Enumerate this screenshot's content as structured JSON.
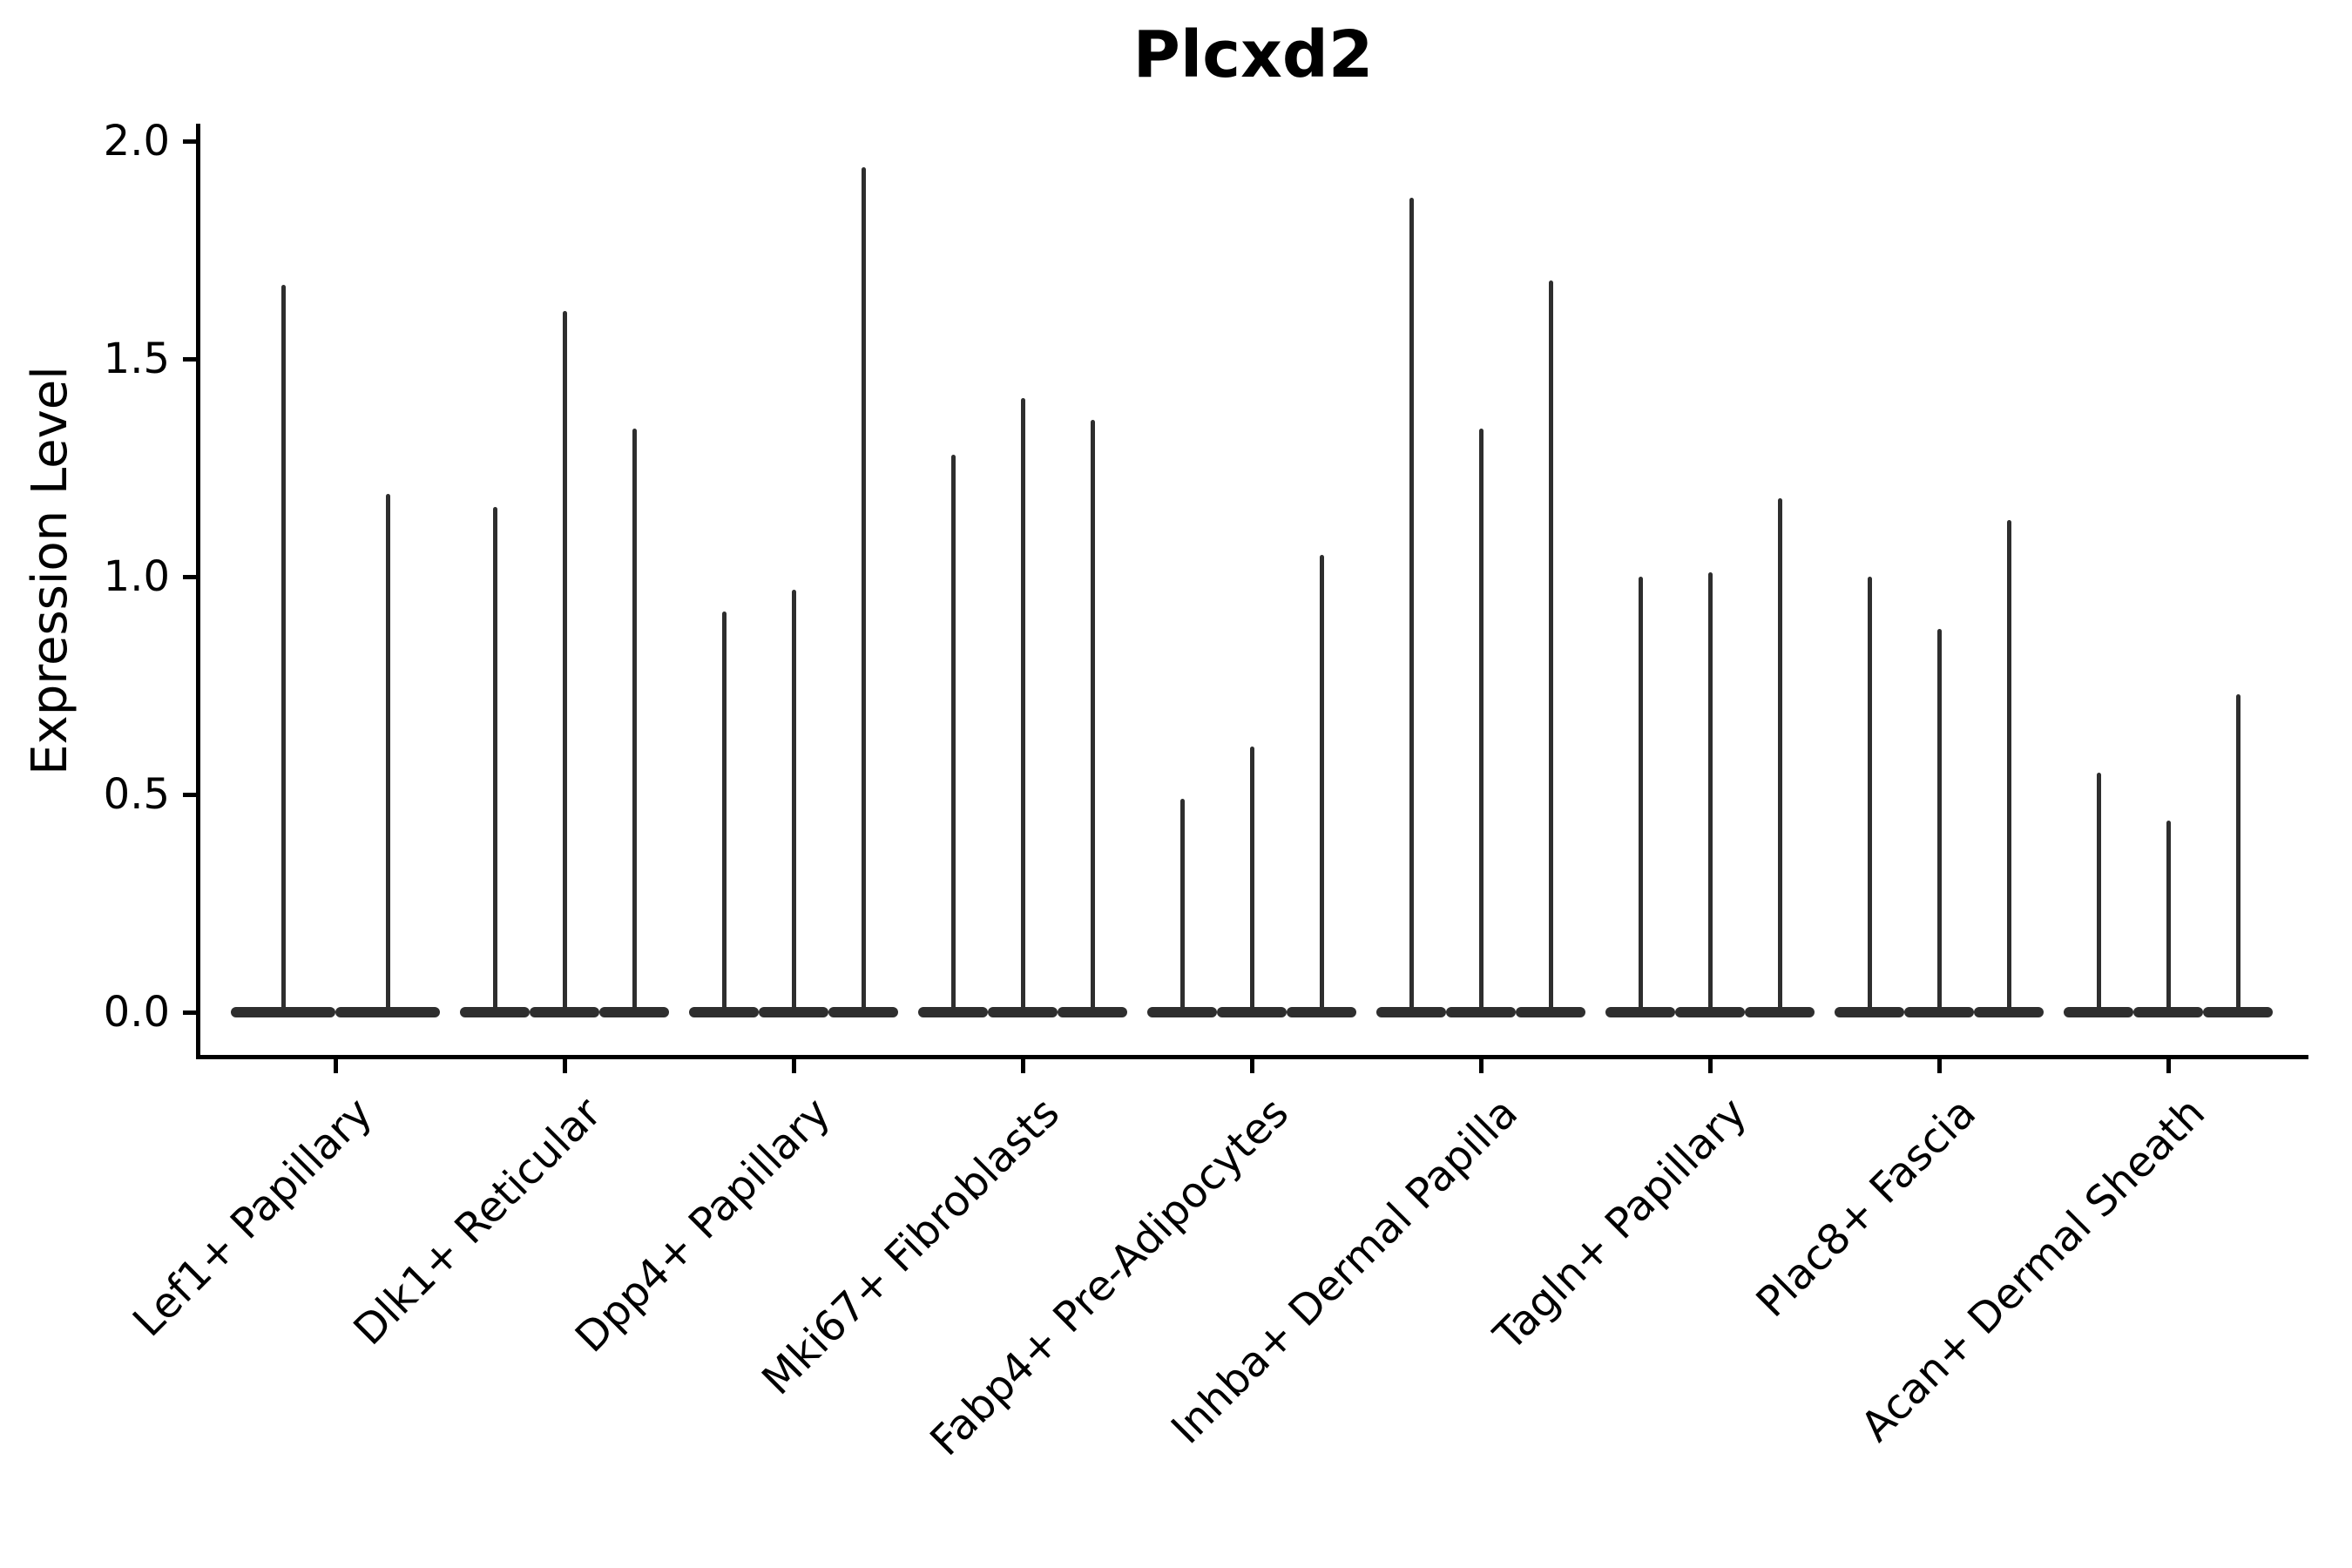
{
  "title": "Plcxd2",
  "ylabel": "Expression Level",
  "chart_data": {
    "type": "violin",
    "title": "Plcxd2",
    "xlabel": "",
    "ylabel": "Expression Level",
    "ylim": [
      0.0,
      2.0
    ],
    "yticks": [
      0.0,
      0.5,
      1.0,
      1.5,
      2.0
    ],
    "grid": false,
    "legend": "none",
    "line_color": "#2e2e2e",
    "categories": [
      "Lef1+ Papillary",
      "Dlk1+ Reticular",
      "Dpp4+ Papillary",
      "Mki67+ Fibroblasts",
      "Fabp4+ Pre-Adipocytes",
      "Inhba+ Dermal Papilla",
      "Tagln+ Papillary",
      "Plac8+ Fascia",
      "Acan+ Dermal Sheath"
    ],
    "groups": [
      {
        "category": "Lef1+ Papillary",
        "violin_max_expression": [
          1.67,
          1.19
        ]
      },
      {
        "category": "Dlk1+ Reticular",
        "violin_max_expression": [
          1.16,
          1.61,
          1.34
        ]
      },
      {
        "category": "Dpp4+ Papillary",
        "violin_max_expression": [
          0.92,
          0.97,
          1.94
        ]
      },
      {
        "category": "Mki67+ Fibroblasts",
        "violin_max_expression": [
          1.28,
          1.41,
          1.36
        ]
      },
      {
        "category": "Fabp4+ Pre-Adipocytes",
        "violin_max_expression": [
          0.49,
          0.61,
          1.05
        ]
      },
      {
        "category": "Inhba+ Dermal Papilla",
        "violin_max_expression": [
          1.87,
          1.34,
          1.68
        ]
      },
      {
        "category": "Tagln+ Papillary",
        "violin_max_expression": [
          1.0,
          1.01,
          1.18
        ]
      },
      {
        "category": "Plac8+ Fascia",
        "violin_max_expression": [
          1.0,
          0.88,
          1.13
        ]
      },
      {
        "category": "Acan+ Dermal Sheath",
        "violin_max_expression": [
          0.55,
          0.44,
          0.73
        ]
      }
    ],
    "note": "All violins are concentrated at expression 0 (wide flat base) with a thin spike up to the listed maximum expression value."
  }
}
